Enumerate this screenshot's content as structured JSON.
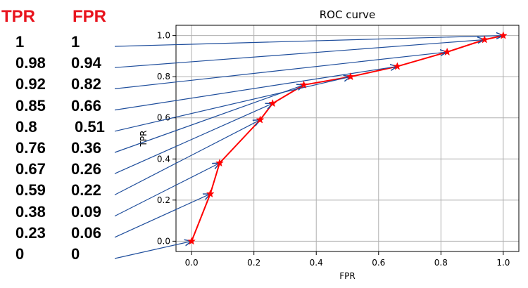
{
  "table": {
    "headers": [
      "TPR",
      "FPR"
    ],
    "header_color": "#e8141e",
    "rows": [
      {
        "tpr": "1",
        "fpr": "1"
      },
      {
        "tpr": "0.98",
        "fpr": "0.94"
      },
      {
        "tpr": "0.92",
        "fpr": "0.82"
      },
      {
        "tpr": "0.85",
        "fpr": "0.66"
      },
      {
        "tpr": "0.8",
        "fpr": "0.51"
      },
      {
        "tpr": "0.76",
        "fpr": "0.36"
      },
      {
        "tpr": "0.67",
        "fpr": "0.26"
      },
      {
        "tpr": "0.59",
        "fpr": "0.22"
      },
      {
        "tpr": "0.38",
        "fpr": "0.09"
      },
      {
        "tpr": "0.23",
        "fpr": "0.06"
      },
      {
        "tpr": "0",
        "fpr": "0"
      }
    ]
  },
  "chart_data": {
    "type": "line",
    "title": "ROC curve",
    "xlabel": "FPR",
    "ylabel": "TPR",
    "xlim": [
      -0.05,
      1.05
    ],
    "ylim": [
      -0.05,
      1.05
    ],
    "xticks": [
      "0.0",
      "0.2",
      "0.4",
      "0.6",
      "0.8",
      "1.0"
    ],
    "yticks": [
      "0.0",
      "0.2",
      "0.4",
      "0.6",
      "0.8",
      "1.0"
    ],
    "grid": true,
    "series": [
      {
        "color": "#ff0000",
        "marker": "star",
        "x": [
          0,
          0.06,
          0.09,
          0.22,
          0.26,
          0.36,
          0.51,
          0.66,
          0.82,
          0.94,
          1
        ],
        "y": [
          0,
          0.23,
          0.38,
          0.59,
          0.67,
          0.76,
          0.8,
          0.85,
          0.92,
          0.98,
          1
        ]
      }
    ],
    "arrow_color": "#1f4e9c"
  }
}
